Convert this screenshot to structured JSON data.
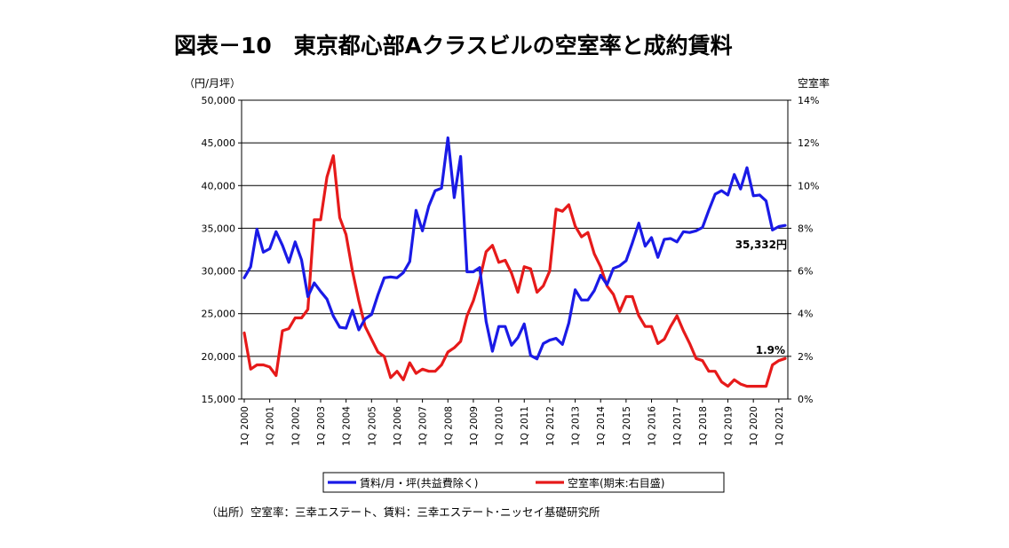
{
  "chart_data": {
    "type": "line",
    "title": "図表－10　東京都心部Aクラスビルの空室率と成約賃料",
    "y_left_unit": "（円/月坪）",
    "y_right_unit": "空室率",
    "y_left_ticks": [
      "50,000",
      "45,000",
      "40,000",
      "35,000",
      "30,000",
      "25,000",
      "20,000",
      "15,000"
    ],
    "y_right_ticks": [
      "14%",
      "12%",
      "10%",
      "8%",
      "6%",
      "4%",
      "2%",
      "0%"
    ],
    "y_left_range": [
      15000,
      50000
    ],
    "y_right_range": [
      0,
      14
    ],
    "x_ticks": [
      "1Q 2000",
      "1Q 2001",
      "1Q 2002",
      "1Q 2003",
      "1Q 2004",
      "1Q 2005",
      "1Q 2006",
      "1Q 2007",
      "1Q 2008",
      "1Q 2009",
      "1Q 2010",
      "1Q 2011",
      "1Q 2012",
      "1Q 2013",
      "1Q 2014",
      "1Q 2015",
      "1Q 2016",
      "1Q 2017",
      "1Q 2018",
      "1Q 2019",
      "1Q 2020",
      "1Q 2021"
    ],
    "series": [
      {
        "name": "賃料/月・坪(共益費除く)",
        "axis": "left",
        "color": "#1a1ae6",
        "values": [
          29200,
          30500,
          34900,
          32200,
          32600,
          34600,
          33000,
          31000,
          33400,
          31300,
          27000,
          28600,
          27600,
          26700,
          24700,
          23400,
          23300,
          25400,
          23100,
          24400,
          24900,
          27200,
          29200,
          29300,
          29200,
          29800,
          31100,
          37100,
          34700,
          37600,
          39400,
          39700,
          45600,
          38600,
          43400,
          29900,
          29900,
          30400,
          24100,
          20600,
          23500,
          23500,
          21300,
          22200,
          23800,
          20100,
          19700,
          21500,
          21900,
          22100,
          21400,
          23900,
          27800,
          26600,
          26600,
          27700,
          29500,
          28400,
          30300,
          30600,
          31200,
          33300,
          35600,
          32900,
          33900,
          31600,
          33700,
          33800,
          33400,
          34600,
          34500,
          34700,
          35100,
          37100,
          39000,
          39400,
          38900,
          41300,
          39600,
          42100,
          38800,
          38900,
          38200,
          34800,
          35200,
          35332
        ]
      },
      {
        "name": "空室率(期末:右目盛)",
        "axis": "right",
        "color": "#e61a1a",
        "values": [
          3.1,
          1.4,
          1.6,
          1.6,
          1.5,
          1.1,
          3.2,
          3.3,
          3.8,
          3.8,
          4.2,
          8.4,
          8.4,
          10.4,
          11.4,
          8.5,
          7.7,
          6.0,
          4.6,
          3.4,
          2.8,
          2.2,
          2.0,
          1.0,
          1.3,
          0.9,
          1.7,
          1.2,
          1.4,
          1.3,
          1.3,
          1.6,
          2.2,
          2.4,
          2.7,
          3.9,
          4.6,
          5.6,
          6.9,
          7.2,
          6.4,
          6.5,
          5.9,
          5.0,
          6.2,
          6.1,
          5.0,
          5.3,
          6.0,
          8.9,
          8.8,
          9.1,
          8.1,
          7.6,
          7.8,
          6.8,
          6.2,
          5.3,
          4.9,
          4.1,
          4.8,
          4.8,
          3.9,
          3.4,
          3.4,
          2.6,
          2.8,
          3.4,
          3.9,
          3.2,
          2.6,
          1.9,
          1.8,
          1.3,
          1.3,
          0.8,
          0.6,
          0.9,
          0.7,
          0.6,
          0.6,
          0.6,
          0.6,
          1.6,
          1.8,
          1.9
        ]
      }
    ],
    "annotations": {
      "rent_last": "35,332円",
      "vacancy_last": "1.9%"
    },
    "legend": [
      {
        "label": "賃料/月・坪(共益費除く)",
        "color": "#1a1ae6"
      },
      {
        "label": "空室率(期末:右目盛)",
        "color": "#e61a1a"
      }
    ],
    "source": "（出所）空室率：三幸エステート、賃料：三幸エステート･ニッセイ基礎研究所"
  }
}
